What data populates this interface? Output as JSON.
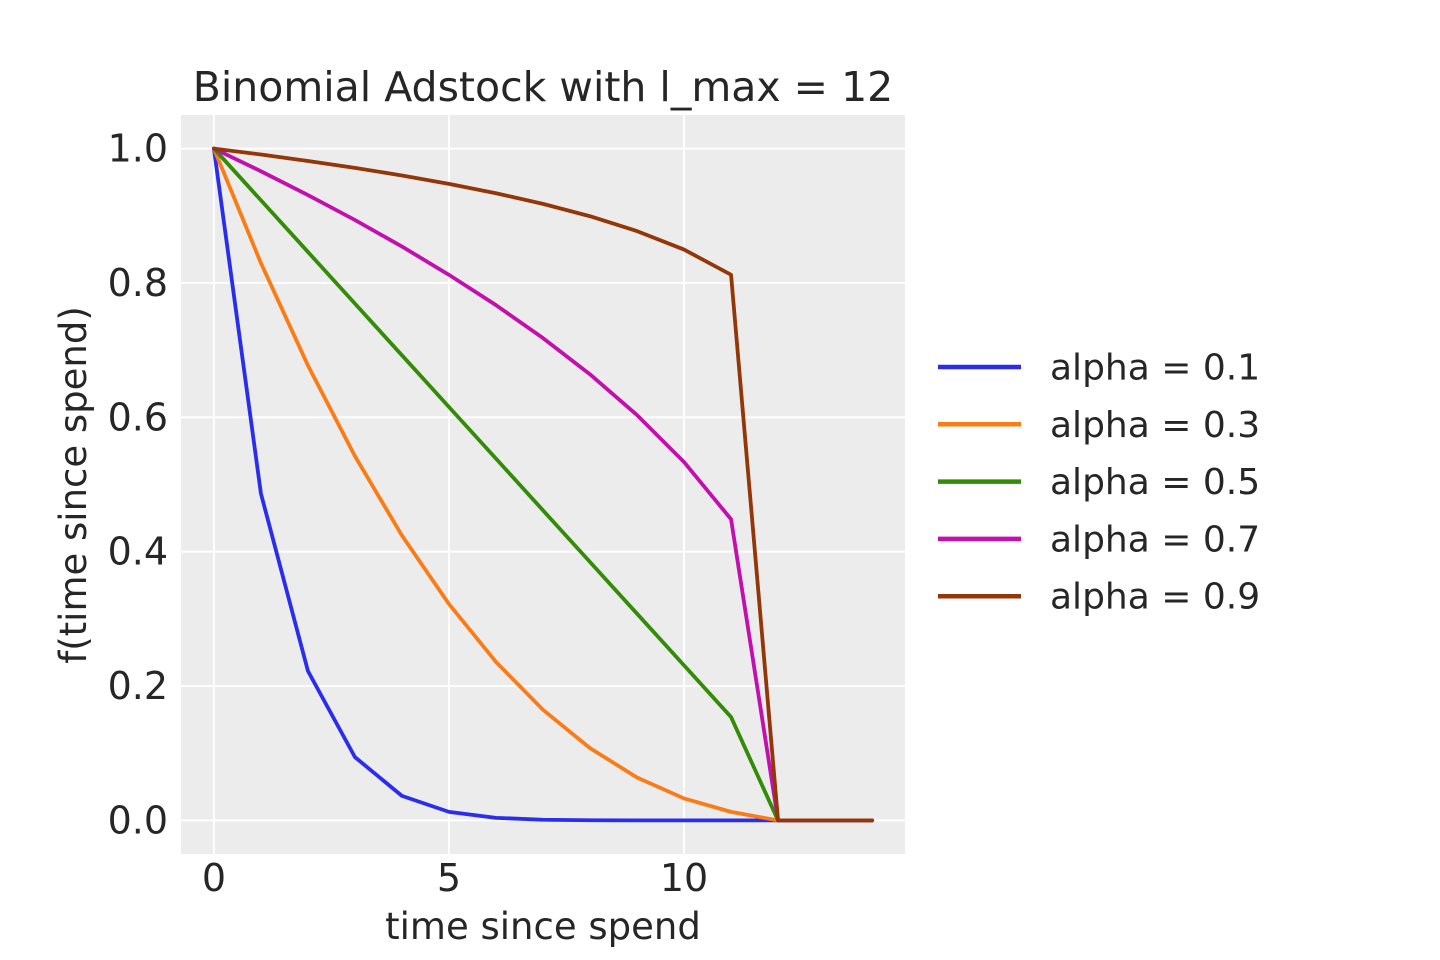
{
  "figure": {
    "background_color": "#ffffff",
    "plot_background_color": "#ececec",
    "grid_color": "#ffffff",
    "text_color": "#262626"
  },
  "chart_data": {
    "type": "line",
    "title": "Binomial Adstock with l_max = 12",
    "xlabel": "time since spend",
    "ylabel": "f(time since spend)",
    "grid": true,
    "legend_position": "outside-right",
    "xlim": [
      -0.7,
      14.7
    ],
    "ylim": [
      -0.05,
      1.05
    ],
    "x_ticks": [
      0,
      5,
      10
    ],
    "x_tick_labels": [
      "0",
      "5",
      "10"
    ],
    "y_ticks": [
      0.0,
      0.2,
      0.4,
      0.6,
      0.8,
      1.0
    ],
    "y_tick_labels": [
      "0.0",
      "0.2",
      "0.4",
      "0.6",
      "0.8",
      "1.0"
    ],
    "x": [
      0,
      1,
      2,
      3,
      4,
      5,
      6,
      7,
      8,
      9,
      10,
      11,
      12,
      13,
      14
    ],
    "series": [
      {
        "name": "alpha = 0.1",
        "color": "#2a2eec",
        "values": [
          1.0,
          0.4865,
          0.2224,
          0.0942,
          0.0365,
          0.0127,
          0.0038,
          0.001,
          0.0002,
          0.0,
          0.0,
          0.0,
          0.0,
          0.0,
          0.0
        ]
      },
      {
        "name": "alpha = 0.3",
        "color": "#fa7c17",
        "values": [
          1.0,
          0.8296,
          0.6772,
          0.5422,
          0.424,
          0.3221,
          0.2359,
          0.1646,
          0.1076,
          0.0639,
          0.0327,
          0.0127,
          0.0,
          0.0,
          0.0
        ]
      },
      {
        "name": "alpha = 0.5",
        "color": "#328c06",
        "values": [
          1.0,
          0.9231,
          0.8462,
          0.7692,
          0.6923,
          0.6154,
          0.5385,
          0.4615,
          0.3846,
          0.3077,
          0.2308,
          0.1538,
          0.0,
          0.0,
          0.0
        ]
      },
      {
        "name": "alpha = 0.7",
        "color": "#c20fad",
        "values": [
          1.0,
          0.9663,
          0.9309,
          0.8937,
          0.8542,
          0.8121,
          0.767,
          0.7179,
          0.664,
          0.6034,
          0.5334,
          0.4483,
          0.0,
          0.0,
          0.0
        ]
      },
      {
        "name": "alpha = 0.9",
        "color": "#933708",
        "values": [
          1.0,
          0.9912,
          0.9816,
          0.9713,
          0.96,
          0.9475,
          0.9335,
          0.9177,
          0.8993,
          0.8772,
          0.8497,
          0.8122,
          0.0,
          0.0,
          0.0
        ]
      }
    ]
  }
}
